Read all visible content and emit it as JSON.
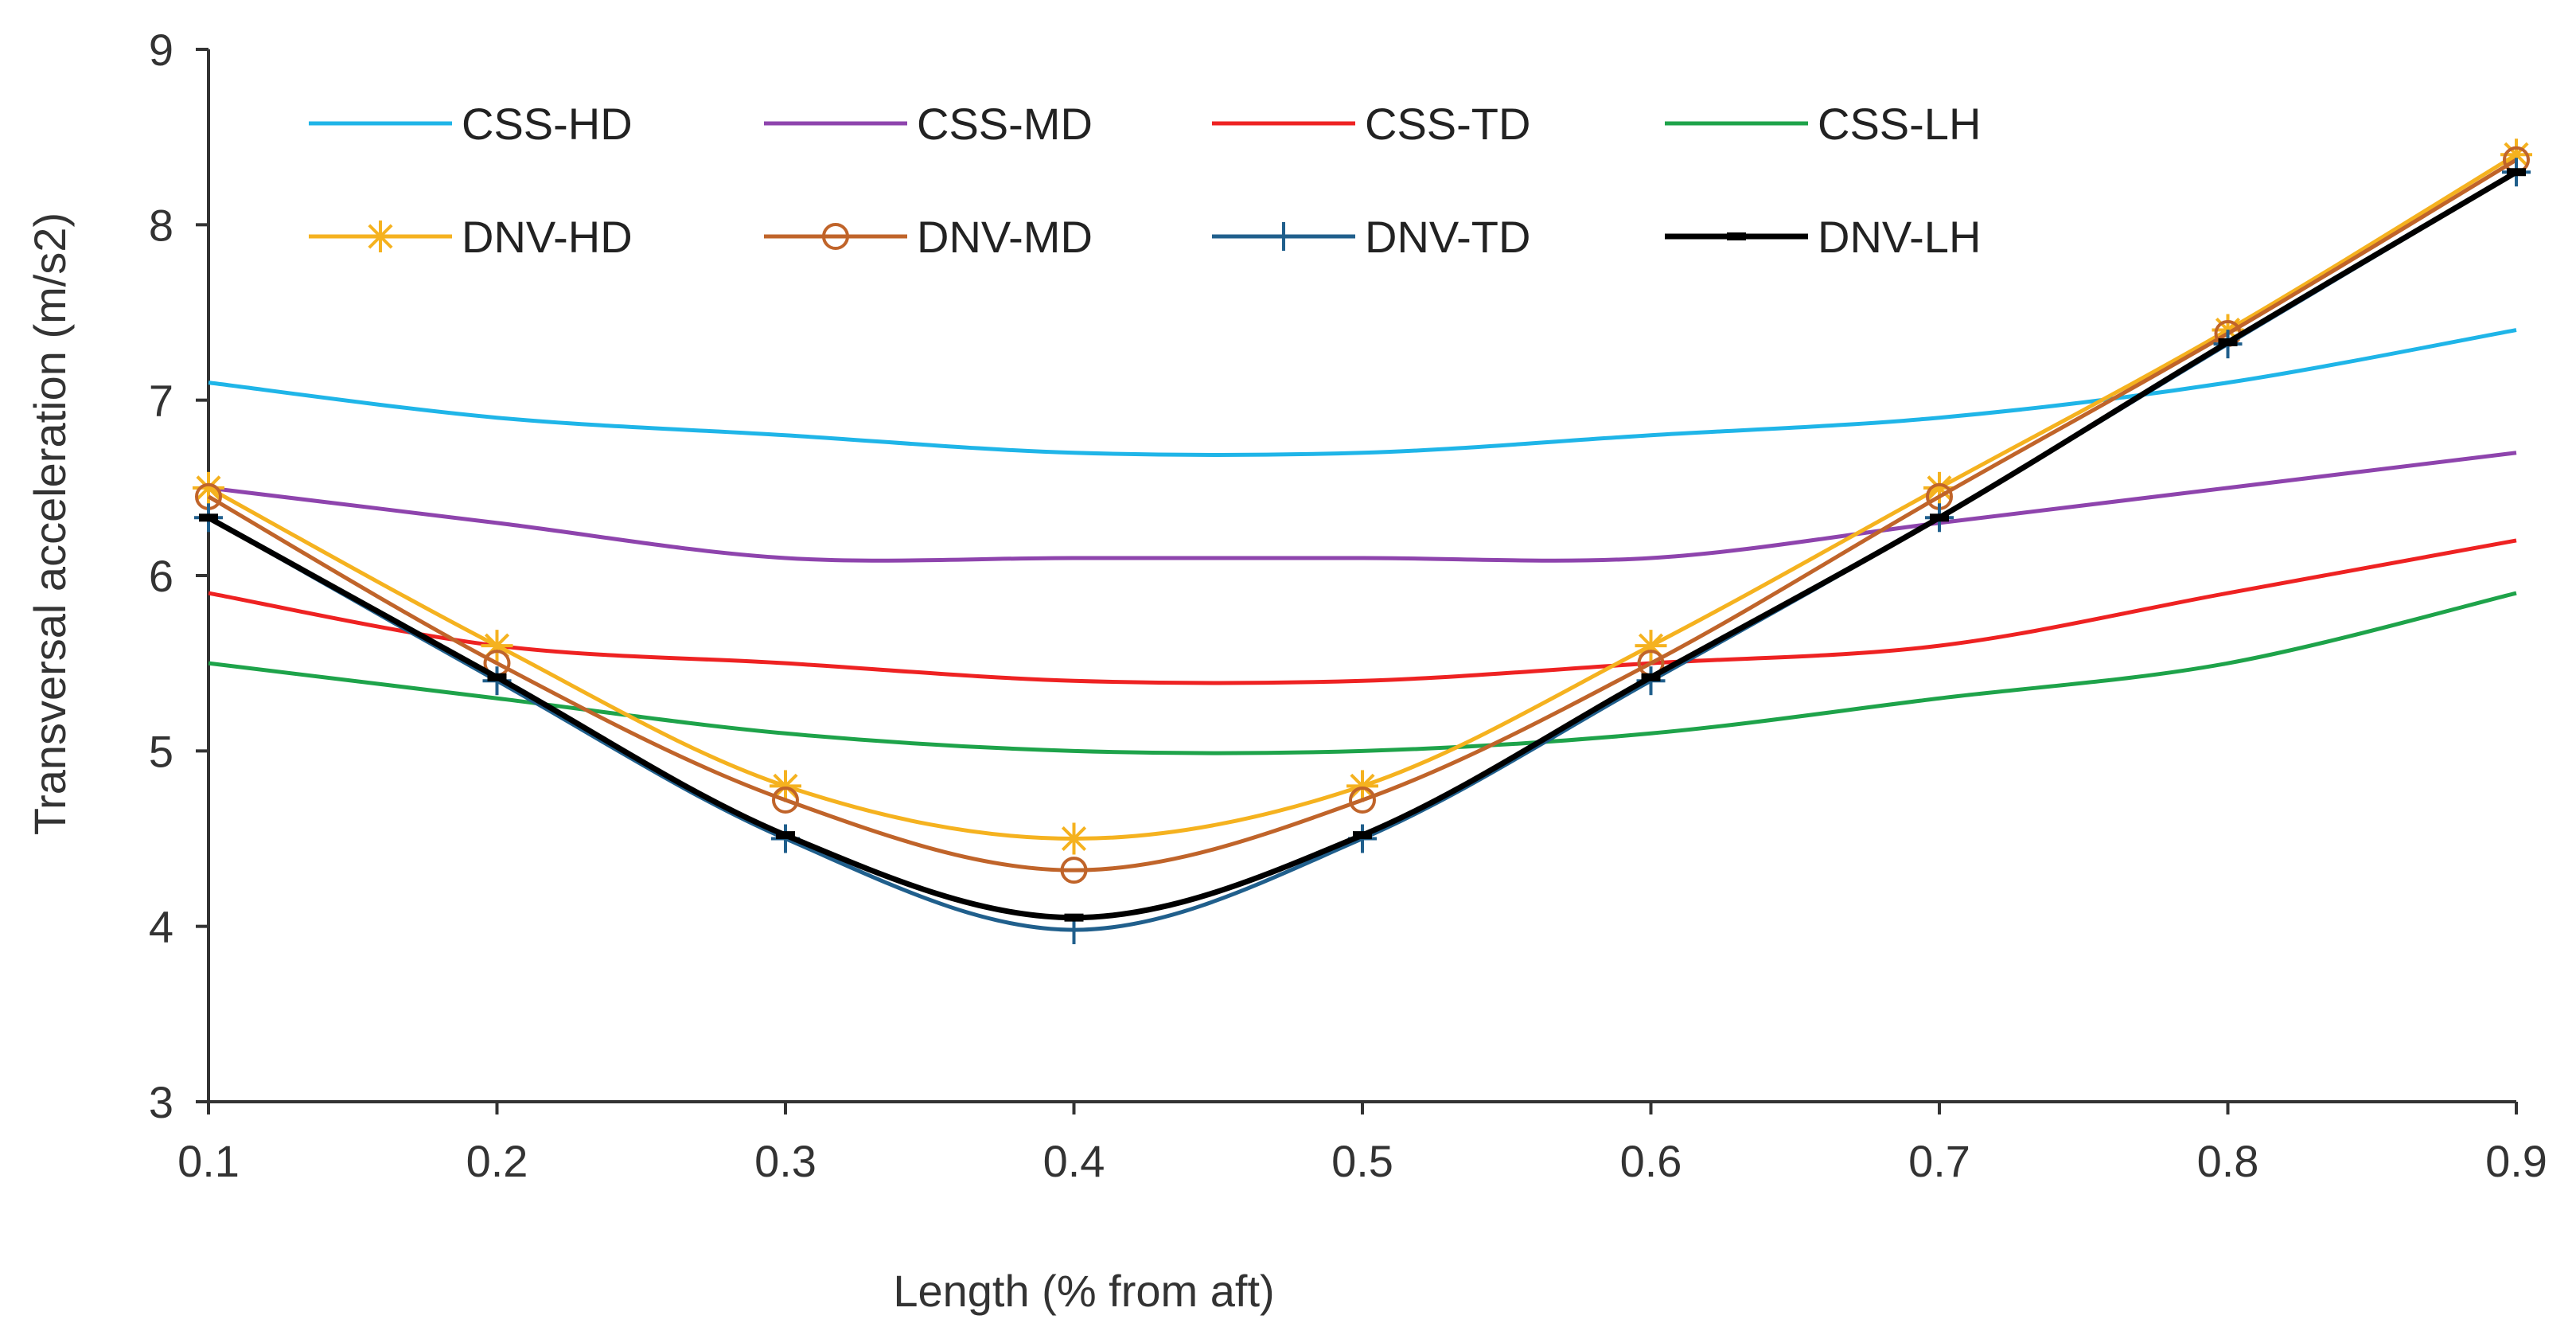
{
  "chart_data": {
    "type": "line",
    "title": "",
    "xlabel": "Length (% from aft)",
    "ylabel": "Transversal acceleration (m/s2)",
    "x": [
      0.1,
      0.2,
      0.3,
      0.4,
      0.5,
      0.6,
      0.7,
      0.8,
      0.9
    ],
    "xlim": [
      0.1,
      0.9
    ],
    "ylim": [
      3,
      9
    ],
    "xticks": [
      "0.1",
      "0.2",
      "0.3",
      "0.4",
      "0.5",
      "0.6",
      "0.7",
      "0.8",
      "0.9"
    ],
    "yticks": [
      "3",
      "4",
      "5",
      "6",
      "7",
      "8",
      "9"
    ],
    "grid": false,
    "legend_position": "top",
    "series": [
      {
        "name": "CSS-HD",
        "color": "#1fb5e8",
        "marker": "none",
        "values": [
          7.1,
          6.9,
          6.8,
          6.7,
          6.7,
          6.8,
          6.9,
          7.1,
          7.4
        ]
      },
      {
        "name": "CSS-MD",
        "color": "#8e44ad",
        "marker": "none",
        "values": [
          6.5,
          6.3,
          6.1,
          6.1,
          6.1,
          6.1,
          6.3,
          6.5,
          6.7
        ]
      },
      {
        "name": "CSS-TD",
        "color": "#ee2222",
        "marker": "none",
        "values": [
          5.9,
          5.6,
          5.5,
          5.4,
          5.4,
          5.5,
          5.6,
          5.9,
          6.2
        ]
      },
      {
        "name": "CSS-LH",
        "color": "#1ea34a",
        "marker": "none",
        "values": [
          5.5,
          5.3,
          5.1,
          5.0,
          5.0,
          5.1,
          5.3,
          5.5,
          5.9
        ]
      },
      {
        "name": "DNV-HD",
        "color": "#f5b21f",
        "marker": "star",
        "values": [
          6.5,
          5.6,
          4.8,
          4.5,
          4.8,
          5.6,
          6.5,
          7.4,
          8.4
        ]
      },
      {
        "name": "DNV-MD",
        "color": "#c0642a",
        "marker": "circle",
        "values": [
          6.45,
          5.5,
          4.72,
          4.32,
          4.72,
          5.5,
          6.45,
          7.38,
          8.37
        ]
      },
      {
        "name": "DNV-TD",
        "color": "#205f8c",
        "marker": "plus",
        "values": [
          6.33,
          5.4,
          4.5,
          3.98,
          4.5,
          5.4,
          6.33,
          7.32,
          8.3
        ]
      },
      {
        "name": "DNV-LH",
        "color": "#000000",
        "marker": "dash",
        "values": [
          6.33,
          5.42,
          4.52,
          4.05,
          4.52,
          5.42,
          6.33,
          7.33,
          8.3
        ]
      }
    ]
  }
}
